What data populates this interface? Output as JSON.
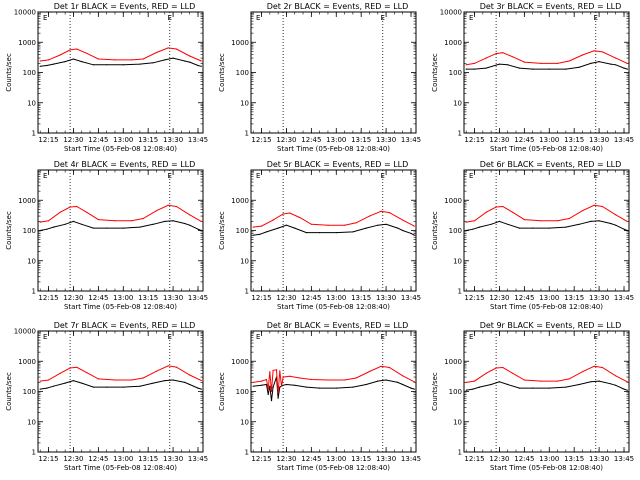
{
  "chart_data": {
    "type": "line",
    "layout": "3x3 grid",
    "y_scale": "log",
    "ylim": [
      1,
      10000
    ],
    "y_ticks": [
      "1",
      "10",
      "100",
      "1000",
      "10000"
    ],
    "xlim": [
      "12:08:40",
      "13:48:00"
    ],
    "x_ticks": [
      "12:15",
      "12:30",
      "12:45",
      "13:00",
      "13:15",
      "13:30",
      "13:45"
    ],
    "ylabel": "Counts/sec",
    "xlabel": "Start Time (05-Feb-08 12:08:40)",
    "markers": [
      {
        "label": "E",
        "times": [
          "12:13",
          "13:28"
        ]
      }
    ],
    "dotted_lines": [
      "12:28",
      "13:28"
    ],
    "legend_note": "BLACK = Events, RED = LLD",
    "panels": [
      {
        "title": "Det 1r BLACK = Events, RED = LLD",
        "show_y_top": true,
        "has_data": true,
        "series": [
          {
            "name": "Events",
            "color": "#000000",
            "x": [
              "12:10",
              "12:14",
              "12:18",
              "12:25",
              "12:30",
              "12:35",
              "12:42",
              "12:50",
              "13:00",
              "13:10",
              "13:18",
              "13:25",
              "13:30",
              "13:37",
              "13:40",
              "13:45",
              "13:47"
            ],
            "values": [
              160,
              170,
              190,
              230,
              280,
              230,
              180,
              180,
              180,
              190,
              210,
              260,
              300,
              240,
              220,
              170,
              160
            ]
          },
          {
            "name": "LLD",
            "color": "#ff0000",
            "x": [
              "12:10",
              "12:15",
              "12:22",
              "12:28",
              "12:32",
              "12:38",
              "12:45",
              "12:55",
              "13:05",
              "13:12",
              "13:20",
              "13:27",
              "13:32",
              "13:40",
              "13:47"
            ],
            "values": [
              240,
              260,
              380,
              560,
              600,
              430,
              280,
              260,
              260,
              280,
              460,
              650,
              600,
              350,
              240
            ]
          }
        ]
      },
      {
        "title": "Det 2r BLACK = Events, RED = LLD",
        "show_y_top": false,
        "has_data": false,
        "series": []
      },
      {
        "title": "Det 3r BLACK = Events, RED = LLD",
        "show_y_top": true,
        "has_data": true,
        "series": [
          {
            "name": "Events",
            "color": "#000000",
            "x": [
              "12:10",
              "12:15",
              "12:22",
              "12:30",
              "12:35",
              "12:42",
              "12:50",
              "13:00",
              "13:10",
              "13:18",
              "13:25",
              "13:30",
              "13:37",
              "13:40",
              "13:45",
              "13:47"
            ],
            "values": [
              130,
              130,
              140,
              190,
              180,
              140,
              130,
              130,
              130,
              150,
              200,
              230,
              190,
              180,
              140,
              130
            ]
          },
          {
            "name": "LLD",
            "color": "#ff0000",
            "x": [
              "12:10",
              "12:15",
              "12:22",
              "12:28",
              "12:32",
              "12:38",
              "12:45",
              "12:55",
              "13:05",
              "13:12",
              "13:20",
              "13:27",
              "13:32",
              "13:40",
              "13:47"
            ],
            "values": [
              180,
              200,
              300,
              420,
              450,
              330,
              220,
              200,
              200,
              240,
              380,
              520,
              480,
              300,
              200
            ]
          }
        ]
      },
      {
        "title": "Det 4r BLACK = Events, RED = LLD",
        "show_y_top": false,
        "has_data": true,
        "series": [
          {
            "name": "Events",
            "color": "#000000",
            "x": [
              "12:10",
              "12:14",
              "12:18",
              "12:25",
              "12:30",
              "12:35",
              "12:42",
              "12:50",
              "13:00",
              "13:10",
              "13:18",
              "13:25",
              "13:30",
              "13:37",
              "13:40",
              "13:45",
              "13:47"
            ],
            "values": [
              100,
              110,
              130,
              160,
              200,
              160,
              120,
              120,
              120,
              130,
              160,
              200,
              210,
              170,
              150,
              110,
              100
            ]
          },
          {
            "name": "LLD",
            "color": "#ff0000",
            "x": [
              "12:10",
              "12:15",
              "12:22",
              "12:28",
              "12:32",
              "12:38",
              "12:45",
              "12:55",
              "13:05",
              "13:12",
              "13:20",
              "13:27",
              "13:32",
              "13:40",
              "13:47"
            ],
            "values": [
              190,
              210,
              400,
              600,
              620,
              400,
              230,
              210,
              210,
              250,
              450,
              680,
              620,
              330,
              200
            ]
          }
        ]
      },
      {
        "title": "Det 5r BLACK = Events, RED = LLD",
        "show_y_top": false,
        "has_data": true,
        "series": [
          {
            "name": "Events",
            "color": "#000000",
            "x": [
              "12:10",
              "12:14",
              "12:18",
              "12:25",
              "12:30",
              "12:35",
              "12:42",
              "12:50",
              "13:00",
              "13:10",
              "13:18",
              "13:25",
              "13:30",
              "13:37",
              "13:40",
              "13:45",
              "13:47"
            ],
            "values": [
              70,
              75,
              90,
              120,
              150,
              120,
              85,
              85,
              85,
              90,
              120,
              150,
              160,
              120,
              100,
              80,
              70
            ]
          },
          {
            "name": "LLD",
            "color": "#ff0000",
            "x": [
              "12:10",
              "12:15",
              "12:22",
              "12:28",
              "12:32",
              "12:38",
              "12:45",
              "12:55",
              "13:05",
              "13:12",
              "13:20",
              "13:27",
              "13:32",
              "13:40",
              "13:47"
            ],
            "values": [
              130,
              140,
              220,
              350,
              380,
              270,
              160,
              150,
              150,
              180,
              300,
              430,
              390,
              220,
              140
            ]
          }
        ]
      },
      {
        "title": "Det 6r BLACK = Events, RED = LLD",
        "show_y_top": false,
        "has_data": true,
        "series": [
          {
            "name": "Events",
            "color": "#000000",
            "x": [
              "12:10",
              "12:14",
              "12:18",
              "12:25",
              "12:30",
              "12:35",
              "12:42",
              "12:50",
              "13:00",
              "13:10",
              "13:18",
              "13:25",
              "13:30",
              "13:37",
              "13:40",
              "13:45",
              "13:47"
            ],
            "values": [
              100,
              110,
              130,
              160,
              200,
              160,
              120,
              120,
              120,
              130,
              160,
              200,
              210,
              170,
              150,
              110,
              100
            ]
          },
          {
            "name": "LLD",
            "color": "#ff0000",
            "x": [
              "12:10",
              "12:15",
              "12:22",
              "12:28",
              "12:32",
              "12:38",
              "12:45",
              "12:55",
              "13:05",
              "13:12",
              "13:20",
              "13:27",
              "13:32",
              "13:40",
              "13:47"
            ],
            "values": [
              190,
              210,
              400,
              600,
              620,
              400,
              230,
              210,
              210,
              250,
              450,
              680,
              620,
              330,
              200
            ]
          }
        ]
      },
      {
        "title": "Det 7r BLACK = Events, RED = LLD",
        "show_y_top": true,
        "has_data": true,
        "series": [
          {
            "name": "Events",
            "color": "#000000",
            "x": [
              "12:10",
              "12:14",
              "12:18",
              "12:25",
              "12:30",
              "12:35",
              "12:42",
              "12:50",
              "13:00",
              "13:10",
              "13:18",
              "13:25",
              "13:30",
              "13:37",
              "13:40",
              "13:45",
              "13:47"
            ],
            "values": [
              120,
              130,
              150,
              190,
              230,
              190,
              140,
              140,
              140,
              150,
              190,
              230,
              240,
              200,
              170,
              130,
              120
            ]
          },
          {
            "name": "LLD",
            "color": "#ff0000",
            "x": [
              "12:10",
              "12:15",
              "12:22",
              "12:28",
              "12:32",
              "12:38",
              "12:45",
              "12:55",
              "13:05",
              "13:12",
              "13:20",
              "13:27",
              "13:32",
              "13:40",
              "13:47"
            ],
            "values": [
              220,
              240,
              400,
              600,
              630,
              420,
              260,
              240,
              240,
              280,
              470,
              700,
              640,
              350,
              230
            ]
          }
        ]
      },
      {
        "title": "Det 8r BLACK = Events, RED = LLD",
        "show_y_top": false,
        "has_data": true,
        "series": [
          {
            "name": "Events",
            "color": "#000000",
            "x": [
              "12:10",
              "12:15",
              "12:18",
              "12:19",
              "12:20",
              "12:21",
              "12:22",
              "12:24",
              "12:25",
              "12:26",
              "12:28",
              "12:30",
              "12:35",
              "12:42",
              "12:50",
              "13:00",
              "13:10",
              "13:18",
              "13:25",
              "13:30",
              "13:37",
              "13:40",
              "13:45",
              "13:47"
            ],
            "values": [
              150,
              160,
              170,
              80,
              150,
              50,
              140,
              300,
              60,
              140,
              160,
              170,
              160,
              140,
              130,
              130,
              140,
              170,
              220,
              240,
              200,
              170,
              130,
              120
            ]
          },
          {
            "name": "LLD",
            "color": "#ff0000",
            "x": [
              "12:10",
              "12:15",
              "12:18",
              "12:19",
              "12:20",
              "12:21",
              "12:22",
              "12:24",
              "12:25",
              "12:26",
              "12:27",
              "12:28",
              "12:32",
              "12:38",
              "12:45",
              "12:55",
              "13:05",
              "13:12",
              "13:20",
              "13:27",
              "13:32",
              "13:40",
              "13:47"
            ],
            "values": [
              200,
              220,
              250,
              120,
              450,
              100,
              500,
              520,
              90,
              480,
              150,
              300,
              320,
              280,
              250,
              240,
              240,
              280,
              460,
              680,
              620,
              330,
              210
            ]
          }
        ]
      },
      {
        "title": "Det 9r BLACK = Events, RED = LLD",
        "show_y_top": false,
        "has_data": true,
        "series": [
          {
            "name": "Events",
            "color": "#000000",
            "x": [
              "12:10",
              "12:14",
              "12:18",
              "12:25",
              "12:30",
              "12:35",
              "12:42",
              "12:50",
              "13:00",
              "13:10",
              "13:18",
              "13:25",
              "13:30",
              "13:37",
              "13:40",
              "13:45",
              "13:47"
            ],
            "values": [
              110,
              120,
              140,
              170,
              210,
              170,
              130,
              130,
              130,
              140,
              170,
              210,
              220,
              180,
              160,
              120,
              110
            ]
          },
          {
            "name": "LLD",
            "color": "#ff0000",
            "x": [
              "12:10",
              "12:15",
              "12:22",
              "12:28",
              "12:32",
              "12:38",
              "12:45",
              "12:55",
              "13:05",
              "13:12",
              "13:20",
              "13:27",
              "13:32",
              "13:40",
              "13:47"
            ],
            "values": [
              200,
              220,
              400,
              600,
              620,
              400,
              240,
              220,
              220,
              260,
              450,
              680,
              620,
              330,
              210
            ]
          }
        ]
      }
    ]
  }
}
